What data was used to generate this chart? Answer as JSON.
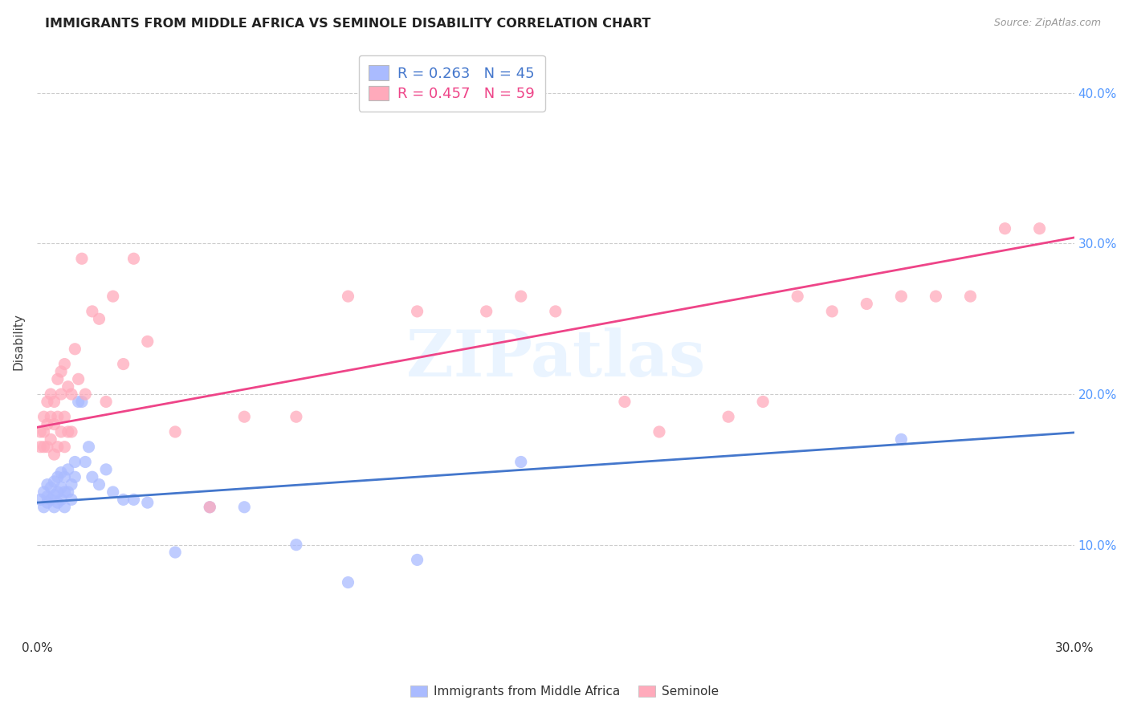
{
  "title": "IMMIGRANTS FROM MIDDLE AFRICA VS SEMINOLE DISABILITY CORRELATION CHART",
  "source": "Source: ZipAtlas.com",
  "ylabel": "Disability",
  "xlim": [
    0.0,
    0.3
  ],
  "ylim": [
    0.04,
    0.43
  ],
  "blue_R": 0.263,
  "blue_N": 45,
  "pink_R": 0.457,
  "pink_N": 59,
  "blue_color": "#aabbff",
  "pink_color": "#ffaabb",
  "blue_line_color": "#4477cc",
  "pink_line_color": "#ee4488",
  "watermark": "ZIPatlas",
  "legend_label_blue": "Immigrants from Middle Africa",
  "legend_label_pink": "Seminole",
  "ytick_vals": [
    0.1,
    0.2,
    0.3,
    0.4
  ],
  "blue_scatter_x": [
    0.001,
    0.002,
    0.002,
    0.003,
    0.003,
    0.003,
    0.004,
    0.004,
    0.005,
    0.005,
    0.005,
    0.006,
    0.006,
    0.006,
    0.007,
    0.007,
    0.007,
    0.008,
    0.008,
    0.008,
    0.009,
    0.009,
    0.01,
    0.01,
    0.011,
    0.011,
    0.012,
    0.013,
    0.014,
    0.015,
    0.016,
    0.018,
    0.02,
    0.022,
    0.025,
    0.028,
    0.032,
    0.04,
    0.05,
    0.06,
    0.075,
    0.09,
    0.11,
    0.14,
    0.25
  ],
  "blue_scatter_y": [
    0.13,
    0.125,
    0.135,
    0.128,
    0.132,
    0.14,
    0.13,
    0.138,
    0.125,
    0.133,
    0.142,
    0.128,
    0.135,
    0.145,
    0.13,
    0.138,
    0.148,
    0.125,
    0.135,
    0.145,
    0.135,
    0.15,
    0.13,
    0.14,
    0.155,
    0.145,
    0.195,
    0.195,
    0.155,
    0.165,
    0.145,
    0.14,
    0.15,
    0.135,
    0.13,
    0.13,
    0.128,
    0.095,
    0.125,
    0.125,
    0.1,
    0.075,
    0.09,
    0.155,
    0.17
  ],
  "pink_scatter_x": [
    0.001,
    0.001,
    0.002,
    0.002,
    0.002,
    0.003,
    0.003,
    0.003,
    0.004,
    0.004,
    0.004,
    0.005,
    0.005,
    0.005,
    0.006,
    0.006,
    0.006,
    0.007,
    0.007,
    0.007,
    0.008,
    0.008,
    0.008,
    0.009,
    0.009,
    0.01,
    0.01,
    0.011,
    0.012,
    0.013,
    0.014,
    0.016,
    0.018,
    0.02,
    0.022,
    0.025,
    0.028,
    0.032,
    0.04,
    0.05,
    0.06,
    0.075,
    0.09,
    0.11,
    0.13,
    0.14,
    0.15,
    0.17,
    0.18,
    0.2,
    0.21,
    0.22,
    0.23,
    0.24,
    0.25,
    0.26,
    0.27,
    0.28,
    0.29
  ],
  "pink_scatter_y": [
    0.165,
    0.175,
    0.165,
    0.175,
    0.185,
    0.18,
    0.165,
    0.195,
    0.17,
    0.185,
    0.2,
    0.16,
    0.18,
    0.195,
    0.165,
    0.185,
    0.21,
    0.175,
    0.2,
    0.215,
    0.165,
    0.185,
    0.22,
    0.175,
    0.205,
    0.175,
    0.2,
    0.23,
    0.21,
    0.29,
    0.2,
    0.255,
    0.25,
    0.195,
    0.265,
    0.22,
    0.29,
    0.235,
    0.175,
    0.125,
    0.185,
    0.185,
    0.265,
    0.255,
    0.255,
    0.265,
    0.255,
    0.195,
    0.175,
    0.185,
    0.195,
    0.265,
    0.255,
    0.26,
    0.265,
    0.265,
    0.265,
    0.31,
    0.31
  ]
}
